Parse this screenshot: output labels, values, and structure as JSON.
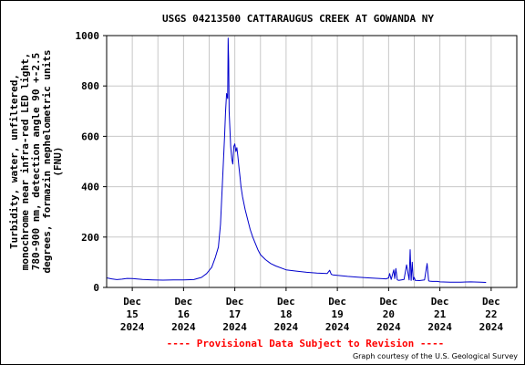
{
  "chart_data": {
    "type": "line",
    "title": "USGS 04213500 CATTARAUGUS CREEK AT GOWANDA NY",
    "ylabel_lines": [
      "Turbidity, water, unfiltered,",
      "monochrome near infra-red LED light,",
      "780-900 nm, detection angle 90 +-2.5",
      "degrees, formazin nephelometric units",
      "(FNU)"
    ],
    "ylim": [
      0,
      1000
    ],
    "yticks": [
      0,
      200,
      400,
      600,
      800,
      1000
    ],
    "xticks": [
      {
        "x": 0,
        "month": "Dec",
        "day": "15",
        "year": "2024"
      },
      {
        "x": 1,
        "month": "Dec",
        "day": "16",
        "year": "2024"
      },
      {
        "x": 2,
        "month": "Dec",
        "day": "17",
        "year": "2024"
      },
      {
        "x": 3,
        "month": "Dec",
        "day": "18",
        "year": "2024"
      },
      {
        "x": 4,
        "month": "Dec",
        "day": "19",
        "year": "2024"
      },
      {
        "x": 5,
        "month": "Dec",
        "day": "20",
        "year": "2024"
      },
      {
        "x": 6,
        "month": "Dec",
        "day": "21",
        "year": "2024"
      },
      {
        "x": 7,
        "month": "Dec",
        "day": "22",
        "year": "2024"
      }
    ],
    "xlim": [
      -0.5,
      7.5
    ],
    "grid": true,
    "line_color": "#0000cc",
    "series": [
      {
        "x": [
          -0.5,
          -0.4,
          -0.3,
          -0.2,
          -0.1,
          0.0,
          0.2,
          0.4,
          0.6,
          0.8,
          1.0,
          1.2,
          1.35,
          1.45,
          1.55,
          1.62,
          1.68,
          1.72,
          1.76,
          1.8,
          1.82,
          1.84,
          1.86,
          1.87,
          1.88,
          1.89,
          1.9,
          1.91,
          1.92,
          1.94,
          1.96,
          1.98,
          2.0,
          2.02,
          2.04,
          2.06,
          2.08,
          2.1,
          2.12,
          2.15,
          2.2,
          2.25,
          2.3,
          2.35,
          2.4,
          2.45,
          2.5,
          2.6,
          2.7,
          2.8,
          3.0,
          3.2,
          3.4,
          3.6,
          3.8,
          3.85,
          3.88,
          3.91,
          4.0,
          4.2,
          4.4,
          4.6,
          4.8,
          4.95,
          5.0,
          5.02,
          5.05,
          5.1,
          5.12,
          5.14,
          5.17,
          5.2,
          5.3,
          5.35,
          5.4,
          5.42,
          5.44,
          5.46,
          5.48,
          5.5,
          5.52,
          5.6,
          5.7,
          5.75,
          5.78,
          5.8,
          5.85,
          5.95,
          6.0,
          6.2,
          6.4,
          6.6,
          6.8,
          6.9
        ],
        "y": [
          38,
          34,
          31,
          33,
          36,
          35,
          32,
          30,
          29,
          30,
          30,
          31,
          40,
          55,
          80,
          120,
          160,
          250,
          420,
          600,
          700,
          770,
          750,
          990,
          900,
          700,
          650,
          600,
          560,
          510,
          490,
          560,
          570,
          540,
          555,
          520,
          480,
          440,
          400,
          360,
          310,
          270,
          230,
          200,
          175,
          150,
          130,
          110,
          95,
          85,
          70,
          65,
          60,
          57,
          55,
          68,
          52,
          50,
          48,
          44,
          41,
          38,
          36,
          34,
          38,
          55,
          32,
          70,
          35,
          75,
          30,
          28,
          32,
          90,
          30,
          150,
          28,
          100,
          30,
          40,
          28,
          27,
          30,
          95,
          26,
          25,
          24,
          24,
          22,
          21,
          21,
          22,
          21,
          20
        ]
      }
    ]
  },
  "footer": {
    "provisional": "---- Provisional Data Subject to Revision ----",
    "courtesy": "Graph courtesy of the U.S. Geological Survey"
  },
  "colors": {
    "grid": "#c8c8c8",
    "line": "#0000cc",
    "provisional": "#ff0000"
  }
}
